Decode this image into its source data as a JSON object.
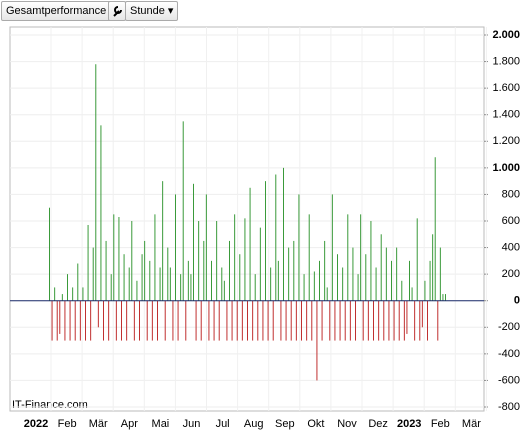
{
  "toolbar": {
    "buttons": [
      "Gesamtperformance",
      "Stunde"
    ]
  },
  "chart_data": {
    "type": "bar",
    "source": "IT-Finance.com",
    "positive_color": "#3a9a3a",
    "negative_color": "#c03030",
    "zero_line_color": "#1a2a6a",
    "grid": true,
    "xticks": [
      "2022",
      "Feb",
      "Mär",
      "Apr",
      "Mai",
      "Jun",
      "Jul",
      "Aug",
      "Sep",
      "Okt",
      "Nov",
      "Dez",
      "2023",
      "Feb",
      "Mär"
    ],
    "ylim": [
      -800,
      2000
    ],
    "yticks": [
      {
        "value": 2000,
        "label": "2.000"
      },
      {
        "value": 1800,
        "label": "1.800"
      },
      {
        "value": 1600,
        "label": "1.600"
      },
      {
        "value": 1400,
        "label": "1.400"
      },
      {
        "value": 1200,
        "label": "1.200"
      },
      {
        "value": 1000,
        "label": "1.000"
      },
      800,
      600,
      400,
      200,
      0,
      -200,
      -400,
      -600,
      -800
    ],
    "values": [
      700,
      -300,
      100,
      -300,
      -250,
      50,
      -300,
      200,
      -300,
      100,
      -300,
      280,
      -300,
      100,
      -300,
      570,
      -300,
      400,
      1780,
      -200,
      1320,
      -300,
      450,
      -300,
      200,
      650,
      -300,
      630,
      -300,
      350,
      -300,
      250,
      600,
      -300,
      150,
      -300,
      350,
      450,
      -300,
      300,
      -300,
      650,
      -300,
      250,
      900,
      -300,
      400,
      250,
      -300,
      800,
      -300,
      200,
      1350,
      -300,
      300,
      200,
      880,
      -300,
      600,
      -300,
      450,
      800,
      -300,
      300,
      -300,
      600,
      -300,
      250,
      150,
      -300,
      450,
      -300,
      650,
      -300,
      350,
      -300,
      620,
      -300,
      850,
      -300,
      200,
      -300,
      550,
      -300,
      900,
      -300,
      250,
      -300,
      950,
      300,
      -300,
      1000,
      -300,
      400,
      -300,
      450,
      -300,
      800,
      -300,
      200,
      -300,
      650,
      -300,
      220,
      -600,
      300,
      -300,
      450,
      100,
      -300,
      800,
      -300,
      350,
      -300,
      250,
      -300,
      650,
      -300,
      400,
      -300,
      200,
      650,
      -300,
      350,
      -300,
      600,
      -300,
      250,
      -300,
      500,
      -300,
      400,
      -300,
      300,
      -300,
      400,
      -300,
      150,
      -300,
      -250,
      300,
      100,
      -300,
      620,
      -300,
      -200,
      150,
      -300,
      300,
      500,
      1080,
      -300,
      400,
      50,
      50
    ]
  }
}
